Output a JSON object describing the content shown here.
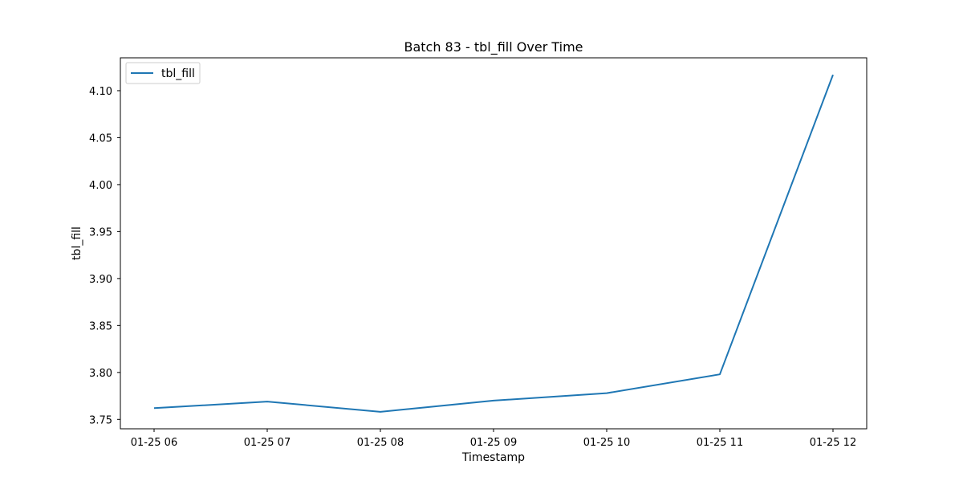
{
  "chart_data": {
    "type": "line",
    "title": "Batch 83 - tbl_fill Over Time",
    "xlabel": "Timestamp",
    "ylabel": "tbl_fill",
    "x": [
      "01-25 06",
      "01-25 07",
      "01-25 08",
      "01-25 09",
      "01-25 10",
      "01-25 11",
      "01-25 12"
    ],
    "series": [
      {
        "name": "tbl_fill",
        "color": "#1f77b4",
        "values": [
          3.762,
          3.769,
          3.758,
          3.77,
          3.778,
          3.798,
          4.117
        ]
      }
    ],
    "x_ticks": [
      "01-25 06",
      "01-25 07",
      "01-25 08",
      "01-25 09",
      "01-25 10",
      "01-25 11",
      "01-25 12"
    ],
    "y_ticks": [
      3.75,
      3.8,
      3.85,
      3.9,
      3.95,
      4.0,
      4.05,
      4.1
    ],
    "y_tick_labels": [
      "3.75",
      "3.80",
      "3.85",
      "3.90",
      "3.95",
      "4.00",
      "4.05",
      "4.10"
    ],
    "ylim": [
      3.74,
      4.135
    ],
    "grid": false,
    "legend_position": "top-left"
  }
}
